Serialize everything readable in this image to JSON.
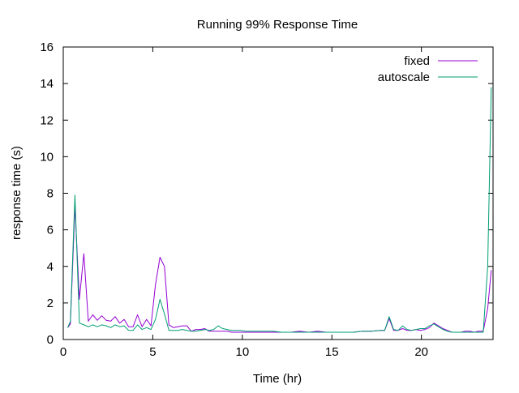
{
  "chart_data": {
    "type": "line",
    "title": "Running 99% Response Time",
    "xlabel": "Time (hr)",
    "ylabel": "response time (s)",
    "xlim": [
      0,
      24
    ],
    "ylim": [
      0,
      16
    ],
    "xticks": [
      0,
      5,
      10,
      15,
      20
    ],
    "yticks": [
      0,
      2,
      4,
      6,
      8,
      10,
      12,
      14,
      16
    ],
    "grid": false,
    "legend": "top-right",
    "series": [
      {
        "name": "fixed",
        "color": "#9400d3",
        "x": [
          0.25,
          0.4,
          0.65,
          0.9,
          1.15,
          1.4,
          1.65,
          1.9,
          2.15,
          2.4,
          2.65,
          2.9,
          3.15,
          3.4,
          3.65,
          3.9,
          4.15,
          4.4,
          4.65,
          4.9,
          5.15,
          5.4,
          5.65,
          5.9,
          6.15,
          6.4,
          6.65,
          6.9,
          7.15,
          7.4,
          7.65,
          7.9,
          8.15,
          8.4,
          8.65,
          8.9,
          9.15,
          9.4,
          9.65,
          9.9,
          10.2,
          10.7,
          11.2,
          11.7,
          12.2,
          12.7,
          13.2,
          13.7,
          14.2,
          14.7,
          15.2,
          15.7,
          16.2,
          16.7,
          17.2,
          17.7,
          17.95,
          18.2,
          18.45,
          18.7,
          18.95,
          19.2,
          19.45,
          19.7,
          19.95,
          20.2,
          20.45,
          20.7,
          20.95,
          21.2,
          21.45,
          21.7,
          21.95,
          22.2,
          22.45,
          22.7,
          22.95,
          23.2,
          23.45,
          23.7,
          23.9
        ],
        "values": [
          0.65,
          0.85,
          7.3,
          2.2,
          4.7,
          1.0,
          1.35,
          1.05,
          1.3,
          1.05,
          1.0,
          1.25,
          0.9,
          1.1,
          0.7,
          0.7,
          1.35,
          0.7,
          1.1,
          0.75,
          3.0,
          4.5,
          4.0,
          0.8,
          0.65,
          0.7,
          0.75,
          0.75,
          0.45,
          0.55,
          0.55,
          0.6,
          0.45,
          0.45,
          0.45,
          0.45,
          0.45,
          0.4,
          0.4,
          0.4,
          0.4,
          0.4,
          0.4,
          0.4,
          0.4,
          0.4,
          0.45,
          0.4,
          0.45,
          0.4,
          0.4,
          0.4,
          0.4,
          0.45,
          0.45,
          0.5,
          0.5,
          1.15,
          0.5,
          0.5,
          0.6,
          0.5,
          0.5,
          0.55,
          0.5,
          0.55,
          0.65,
          0.9,
          0.75,
          0.6,
          0.5,
          0.4,
          0.4,
          0.4,
          0.45,
          0.45,
          0.4,
          0.45,
          0.45,
          1.7,
          3.8
        ]
      },
      {
        "name": "autoscale",
        "color": "#009e73",
        "x": [
          0.25,
          0.4,
          0.65,
          0.9,
          1.15,
          1.4,
          1.65,
          1.9,
          2.15,
          2.4,
          2.65,
          2.9,
          3.15,
          3.4,
          3.65,
          3.9,
          4.15,
          4.4,
          4.65,
          4.9,
          5.15,
          5.4,
          5.65,
          5.9,
          6.15,
          6.4,
          6.65,
          6.9,
          7.15,
          7.4,
          7.65,
          7.9,
          8.15,
          8.4,
          8.65,
          8.9,
          9.15,
          9.4,
          9.65,
          9.9,
          10.2,
          10.7,
          11.2,
          11.7,
          12.2,
          12.7,
          13.2,
          13.7,
          14.2,
          14.7,
          15.2,
          15.7,
          16.2,
          16.7,
          17.2,
          17.7,
          17.95,
          18.2,
          18.45,
          18.7,
          18.95,
          19.2,
          19.45,
          19.7,
          19.95,
          20.2,
          20.45,
          20.7,
          20.95,
          21.2,
          21.45,
          21.7,
          21.95,
          22.2,
          22.45,
          22.7,
          22.95,
          23.2,
          23.45,
          23.7,
          23.9
        ],
        "values": [
          0.65,
          1.0,
          7.9,
          0.9,
          0.8,
          0.7,
          0.8,
          0.7,
          0.8,
          0.75,
          0.65,
          0.8,
          0.7,
          0.75,
          0.5,
          0.5,
          0.8,
          0.55,
          0.65,
          0.55,
          1.1,
          2.2,
          1.4,
          0.5,
          0.5,
          0.5,
          0.55,
          0.5,
          0.45,
          0.45,
          0.5,
          0.55,
          0.5,
          0.55,
          0.75,
          0.6,
          0.55,
          0.5,
          0.5,
          0.5,
          0.45,
          0.45,
          0.45,
          0.45,
          0.4,
          0.4,
          0.4,
          0.4,
          0.4,
          0.4,
          0.4,
          0.4,
          0.4,
          0.45,
          0.45,
          0.5,
          0.5,
          1.25,
          0.55,
          0.5,
          0.75,
          0.55,
          0.5,
          0.55,
          0.6,
          0.6,
          0.75,
          0.85,
          0.7,
          0.55,
          0.45,
          0.4,
          0.4,
          0.4,
          0.4,
          0.4,
          0.4,
          0.4,
          0.4,
          4.0,
          13.8
        ]
      }
    ]
  }
}
